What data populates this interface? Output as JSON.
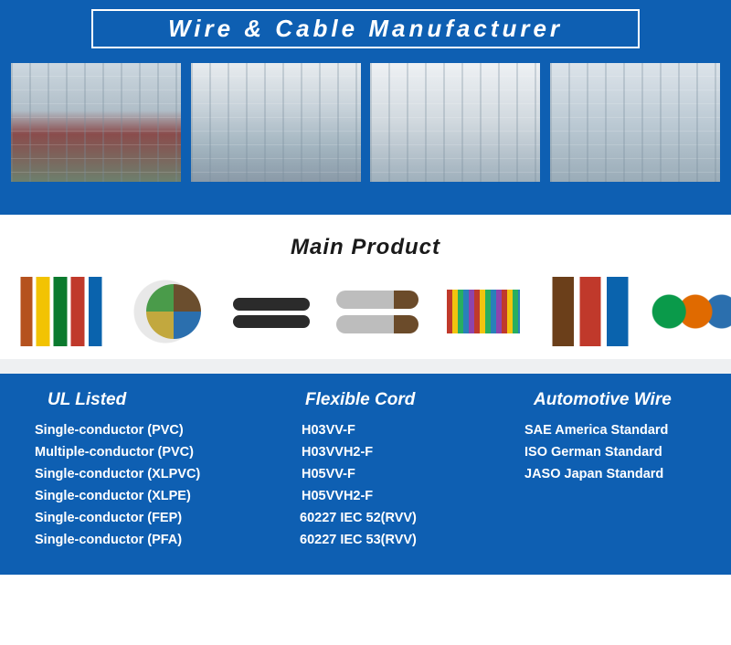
{
  "banner": {
    "title": "Wire & Cable Manufacturer",
    "bg_color": "#0e5fb2",
    "title_color": "#ffffff"
  },
  "main_product": {
    "title": "Main Product",
    "title_color": "#1a1a1a"
  },
  "categories": {
    "bg_color": "#0e5fb2",
    "text_color": "#ffffff",
    "cols": [
      {
        "title": "UL Listed",
        "items": [
          "Single-conductor (PVC)",
          "Multiple-conductor (PVC)",
          "Single-conductor (XLPVC)",
          "Single-conductor (XLPE)",
          "Single-conductor (FEP)",
          "Single-conductor (PFA)"
        ]
      },
      {
        "title": "Flexible Cord",
        "items": [
          "H03VV-F",
          "H03VVH2-F",
          "H05VV-F",
          "H05VVH2-F",
          "60227 IEC 52(RVV)",
          "60227 IEC 53(RVV)"
        ]
      },
      {
        "title": "Automotive Wire",
        "items": [
          "SAE America Standard",
          "ISO German Standard",
          "JASO Japan Standard"
        ]
      }
    ]
  }
}
